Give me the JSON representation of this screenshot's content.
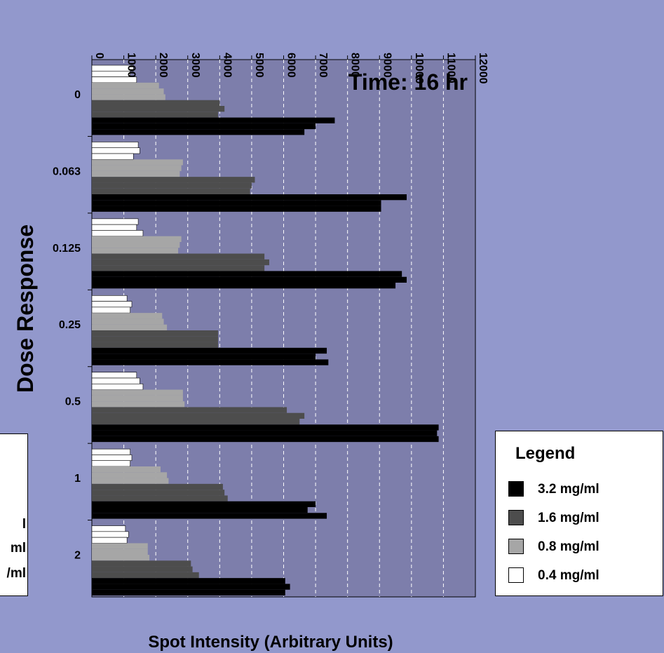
{
  "chart_data": {
    "type": "bar",
    "orientation": "horizontal",
    "title": "Time: 16 hr",
    "xlabel": "Spot Intensity (Arbitrary Units)",
    "ylabel": "Dose Response",
    "xlim": [
      0,
      12000
    ],
    "x_ticks": [
      "0",
      "1000",
      "2000",
      "3000",
      "4000",
      "5000",
      "6000",
      "7000",
      "8000",
      "9000",
      "10000",
      "11000",
      "12000"
    ],
    "x_tick_values": [
      0,
      1000,
      2000,
      3000,
      4000,
      5000,
      6000,
      7000,
      8000,
      9000,
      10000,
      11000,
      12000
    ],
    "categories": [
      "0",
      "0.063",
      "0.125",
      "0.25",
      "0.5",
      "1",
      "2"
    ],
    "grid": "vertical dashed",
    "series": [
      {
        "name": "0.4 mg/ml",
        "color": "#ffffff",
        "replicates": [
          [
            1300,
            1200,
            1400
          ],
          [
            1450,
            1500,
            1300
          ],
          [
            1450,
            1400,
            1600
          ],
          [
            1100,
            1250,
            1200
          ],
          [
            1400,
            1500,
            1600
          ],
          [
            1200,
            1250,
            1200
          ],
          [
            1050,
            1150,
            1100
          ]
        ]
      },
      {
        "name": "0.8 mg/ml",
        "color": "#a6a6a6",
        "replicates": [
          [
            2100,
            2250,
            2300
          ],
          [
            2850,
            2800,
            2750
          ],
          [
            2800,
            2750,
            2700
          ],
          [
            2200,
            2250,
            2350
          ],
          [
            2850,
            2850,
            2900
          ],
          [
            2150,
            2350,
            2400
          ],
          [
            1750,
            1750,
            1800
          ]
        ]
      },
      {
        "name": "1.6 mg/ml",
        "color": "#4d4d4d",
        "replicates": [
          [
            4000,
            4150,
            3950
          ],
          [
            5100,
            5000,
            4950
          ],
          [
            5400,
            5550,
            5400
          ],
          [
            3950,
            3950,
            3950
          ],
          [
            6100,
            6650,
            6500
          ],
          [
            4100,
            4150,
            4250
          ],
          [
            3100,
            3150,
            3350
          ]
        ]
      },
      {
        "name": "3.2 mg/ml",
        "color": "#000000",
        "replicates": [
          [
            7600,
            7000,
            6650
          ],
          [
            9850,
            9050,
            9050
          ],
          [
            9700,
            9850,
            9500
          ],
          [
            7350,
            7000,
            7400
          ],
          [
            10850,
            10800,
            10850
          ],
          [
            7000,
            6750,
            7350
          ],
          [
            6050,
            6200,
            6050
          ]
        ]
      }
    ]
  },
  "legend": {
    "title": "Legend",
    "items": [
      {
        "label": "3.2 mg/ml",
        "color": "#000000"
      },
      {
        "label": "1.6 mg/ml",
        "color": "#4d4d4d"
      },
      {
        "label": "0.8 mg/ml",
        "color": "#a6a6a6"
      },
      {
        "label": "0.4 mg/ml",
        "color": "#ffffff"
      }
    ]
  },
  "partial_legend": {
    "items": [
      {
        "label": "l"
      },
      {
        "label": "ml"
      },
      {
        "label": "/ml"
      }
    ]
  }
}
